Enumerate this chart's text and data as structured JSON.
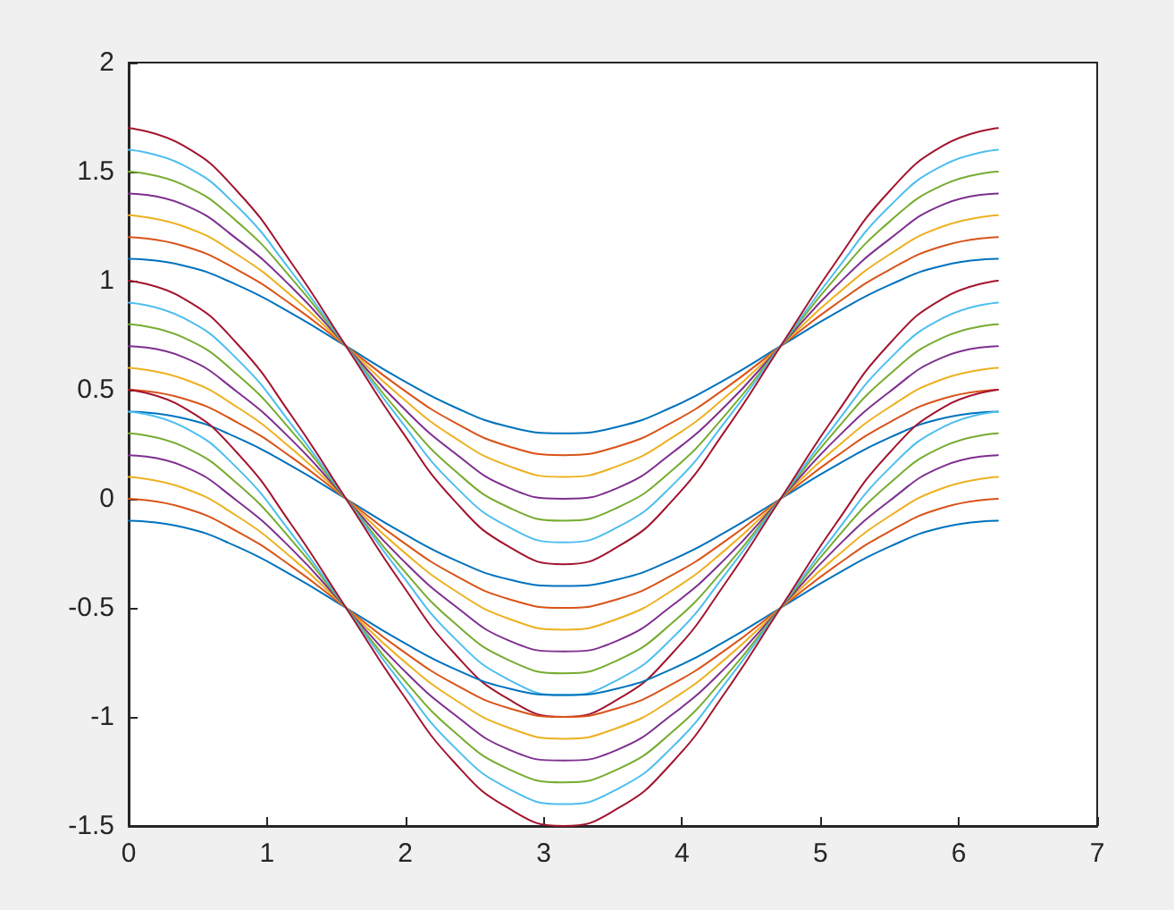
{
  "chart_data": {
    "type": "line",
    "marker": "none",
    "line_style": "solid",
    "grid": false,
    "x": [
      0,
      0.393,
      0.785,
      1.178,
      1.571,
      1.963,
      2.356,
      2.749,
      3.142,
      3.534,
      3.927,
      4.32,
      4.712,
      5.105,
      5.498,
      5.89,
      6.283
    ],
    "xlim": [
      0,
      7
    ],
    "xticks": [
      0,
      1,
      2,
      3,
      4,
      5,
      6,
      7
    ],
    "ylim": [
      -1.5,
      2
    ],
    "yticks": [
      -1.5,
      -1,
      -0.5,
      0,
      0.5,
      1,
      1.5,
      2
    ],
    "series": [
      {
        "color": "#0072bd",
        "values": [
          1.1,
          1.07,
          0.98,
          0.85,
          0.7,
          0.55,
          0.42,
          0.33,
          0.3,
          0.33,
          0.42,
          0.55,
          0.7,
          0.85,
          0.98,
          1.07,
          1.1
        ]
      },
      {
        "color": "#d95319",
        "values": [
          1.2,
          1.16,
          1.05,
          0.89,
          0.7,
          0.51,
          0.35,
          0.24,
          0.2,
          0.24,
          0.35,
          0.51,
          0.7,
          0.89,
          1.05,
          1.16,
          1.2
        ]
      },
      {
        "color": "#edb120",
        "values": [
          1.3,
          1.25,
          1.12,
          0.93,
          0.7,
          0.47,
          0.28,
          0.15,
          0.1,
          0.15,
          0.28,
          0.47,
          0.7,
          0.93,
          1.12,
          1.25,
          1.3
        ]
      },
      {
        "color": "#7e2f8e",
        "values": [
          1.4,
          1.35,
          1.19,
          0.97,
          0.7,
          0.43,
          0.21,
          0.05,
          0,
          0.05,
          0.21,
          0.43,
          0.7,
          0.97,
          1.19,
          1.35,
          1.4
        ]
      },
      {
        "color": "#77ac30",
        "values": [
          1.5,
          1.44,
          1.27,
          1.01,
          0.7,
          0.39,
          0.13,
          -0.04,
          -0.1,
          -0.04,
          0.13,
          0.39,
          0.7,
          1.01,
          1.27,
          1.44,
          1.5
        ]
      },
      {
        "color": "#4dbeee",
        "values": [
          1.6,
          1.53,
          1.34,
          1.04,
          0.7,
          0.36,
          0.06,
          -0.13,
          -0.2,
          -0.13,
          0.06,
          0.36,
          0.7,
          1.04,
          1.34,
          1.53,
          1.6
        ]
      },
      {
        "color": "#a2142f",
        "values": [
          1.7,
          1.62,
          1.41,
          1.08,
          0.7,
          0.32,
          -0.01,
          -0.22,
          -0.3,
          -0.22,
          -0.01,
          0.32,
          0.7,
          1.08,
          1.41,
          1.62,
          1.7
        ]
      },
      {
        "color": "#0072bd",
        "values": [
          0.4,
          0.37,
          0.28,
          0.15,
          0,
          -0.15,
          -0.28,
          -0.37,
          -0.4,
          -0.37,
          -0.28,
          -0.15,
          0,
          0.15,
          0.28,
          0.37,
          0.4
        ]
      },
      {
        "color": "#d95319",
        "values": [
          0.5,
          0.46,
          0.35,
          0.19,
          0,
          -0.19,
          -0.35,
          -0.46,
          -0.5,
          -0.46,
          -0.35,
          -0.19,
          0,
          0.19,
          0.35,
          0.46,
          0.5
        ]
      },
      {
        "color": "#edb120",
        "values": [
          0.6,
          0.55,
          0.42,
          0.23,
          0,
          -0.23,
          -0.42,
          -0.55,
          -0.6,
          -0.55,
          -0.42,
          -0.23,
          0,
          0.23,
          0.42,
          0.55,
          0.6
        ]
      },
      {
        "color": "#7e2f8e",
        "values": [
          0.7,
          0.65,
          0.49,
          0.27,
          0,
          -0.27,
          -0.49,
          -0.65,
          -0.7,
          -0.65,
          -0.49,
          -0.27,
          0,
          0.27,
          0.49,
          0.65,
          0.7
        ]
      },
      {
        "color": "#77ac30",
        "values": [
          0.8,
          0.74,
          0.57,
          0.31,
          0,
          -0.31,
          -0.57,
          -0.74,
          -0.8,
          -0.74,
          -0.57,
          -0.31,
          0,
          0.31,
          0.57,
          0.74,
          0.8
        ]
      },
      {
        "color": "#4dbeee",
        "values": [
          0.9,
          0.83,
          0.64,
          0.34,
          0,
          -0.34,
          -0.64,
          -0.83,
          -0.9,
          -0.83,
          -0.64,
          -0.34,
          0,
          0.34,
          0.64,
          0.83,
          0.9
        ]
      },
      {
        "color": "#a2142f",
        "values": [
          1,
          0.92,
          0.71,
          0.38,
          0,
          -0.38,
          -0.71,
          -0.92,
          -1,
          -0.92,
          -0.71,
          -0.38,
          0,
          0.38,
          0.71,
          0.92,
          1
        ]
      },
      {
        "color": "#0072bd",
        "values": [
          -0.1,
          -0.13,
          -0.22,
          -0.35,
          -0.5,
          -0.65,
          -0.78,
          -0.87,
          -0.9,
          -0.87,
          -0.78,
          -0.65,
          -0.5,
          -0.35,
          -0.22,
          -0.13,
          -0.1
        ]
      },
      {
        "color": "#d95319",
        "values": [
          0,
          -0.04,
          -0.15,
          -0.31,
          -0.5,
          -0.69,
          -0.85,
          -0.96,
          -1,
          -0.96,
          -0.85,
          -0.69,
          -0.5,
          -0.31,
          -0.15,
          -0.04,
          0
        ]
      },
      {
        "color": "#edb120",
        "values": [
          0.1,
          0.05,
          -0.08,
          -0.27,
          -0.5,
          -0.73,
          -0.92,
          -1.05,
          -1.1,
          -1.05,
          -0.92,
          -0.73,
          -0.5,
          -0.27,
          -0.08,
          0.05,
          0.1
        ]
      },
      {
        "color": "#7e2f8e",
        "values": [
          0.2,
          0.15,
          -0.01,
          -0.23,
          -0.5,
          -0.77,
          -0.99,
          -1.15,
          -1.2,
          -1.15,
          -0.99,
          -0.77,
          -0.5,
          -0.23,
          -0.01,
          0.15,
          0.2
        ]
      },
      {
        "color": "#77ac30",
        "values": [
          0.3,
          0.24,
          0.07,
          -0.19,
          -0.5,
          -0.81,
          -1.07,
          -1.24,
          -1.3,
          -1.24,
          -1.07,
          -0.81,
          -0.5,
          -0.19,
          0.07,
          0.24,
          0.3
        ]
      },
      {
        "color": "#4dbeee",
        "values": [
          0.4,
          0.33,
          0.14,
          -0.16,
          -0.5,
          -0.84,
          -1.14,
          -1.33,
          -1.4,
          -1.33,
          -1.14,
          -0.84,
          -0.5,
          -0.16,
          0.14,
          0.33,
          0.4
        ]
      },
      {
        "color": "#a2142f",
        "values": [
          0.5,
          0.42,
          0.21,
          -0.12,
          -0.5,
          -0.88,
          -1.21,
          -1.42,
          -1.5,
          -1.42,
          -1.21,
          -0.88,
          -0.5,
          -0.12,
          0.21,
          0.42,
          0.5
        ]
      }
    ]
  }
}
